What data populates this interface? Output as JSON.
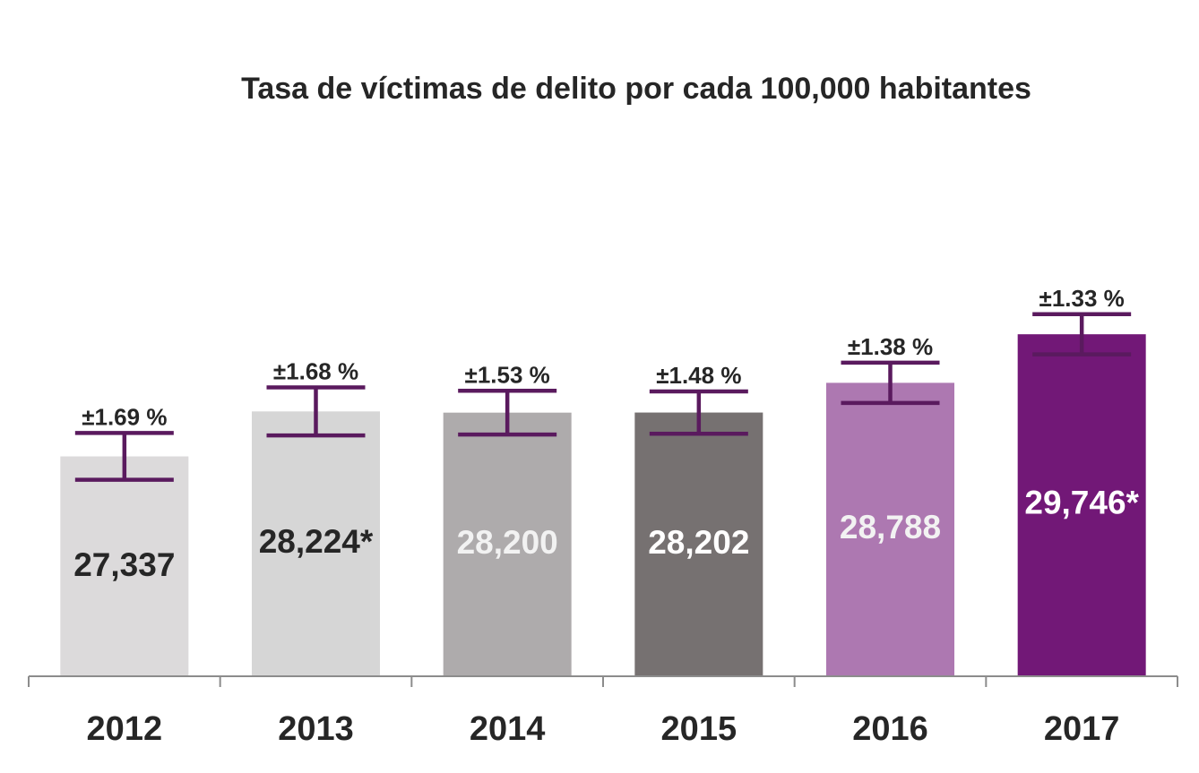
{
  "chart_data": {
    "type": "bar",
    "title": "Tasa de víctimas de delito por cada 100,000 habitantes",
    "xlabel": "",
    "ylabel": "",
    "grid": false,
    "legend": "none",
    "categories": [
      "2012",
      "2013",
      "2014",
      "2015",
      "2016",
      "2017"
    ],
    "values": [
      27337,
      28224,
      28200,
      28202,
      28788,
      29746
    ],
    "value_labels": [
      "27,337",
      "28,224*",
      "28,200",
      "28,202",
      "28,788",
      "29,746*"
    ],
    "error_percent": [
      1.69,
      1.68,
      1.53,
      1.48,
      1.38,
      1.33
    ],
    "error_labels": [
      "±1.69 %",
      "±1.68 %",
      "±1.53 %",
      "±1.48 %",
      "±1.38 %",
      "±1.33 %"
    ],
    "bar_colors": [
      "#dcdadb",
      "#d6d6d6",
      "#aeabac",
      "#767171",
      "#ad78b1",
      "#721877"
    ],
    "value_label_colors": [
      "#262626",
      "#262626",
      "#f2f2f2",
      "#ffffff",
      "#f2f2f2",
      "#ffffff"
    ],
    "error_bar_color": "#5a1a5e",
    "ylim": [
      23000,
      30500
    ]
  }
}
